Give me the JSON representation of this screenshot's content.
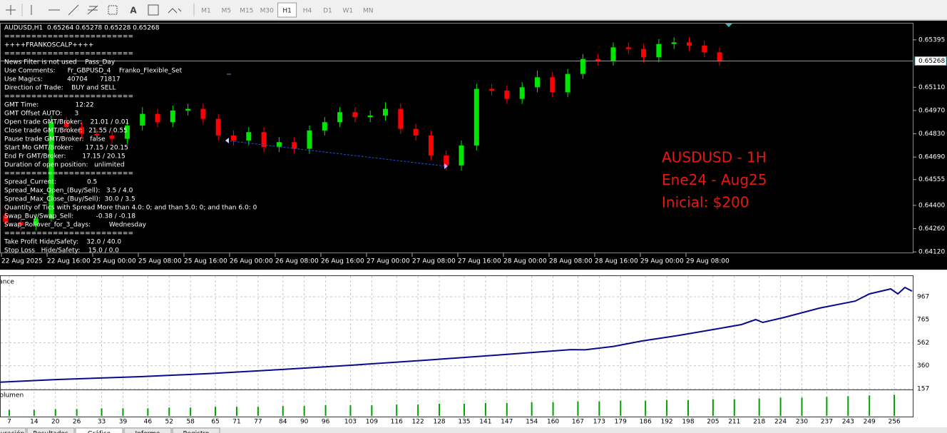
{
  "toolbar": {
    "timeframes": [
      "M1",
      "M5",
      "M15",
      "M30",
      "H1",
      "H4",
      "D1",
      "W1",
      "MN"
    ],
    "active_timeframe": "H1",
    "text_tool": "A"
  },
  "price_chart": {
    "header": "AUDUSD,H1  0.65264 0.65278 0.65228 0.65268",
    "info_lines": [
      "========================",
      "++++FRANKOSCALP++++",
      "========================",
      "News Filter is not used    Pass_Day",
      "Use Comments:      Fr_GBPUSD_4    Franko_Flexible_Set",
      "Use Magics:            40704      71817",
      "Direction of Trade:    BUY and SELL",
      "========================",
      "GMT Time:                  12:22",
      "GMT Offset AUTO:      3",
      "Open trade GMT/Broker:    21.01 / 0.01",
      "Close trade GMT/Broker:   21.55 / 0.55",
      "Pause trade GMT/Broker:   false",
      "Start Mo GMT/Broker:      17.15 / 20.15",
      "End Fr GMT/Broker:        17.15 / 20.15",
      "Duration of open position:   unlimited",
      "========================",
      "Spread_Current:               0.5",
      "Spread_Max_Open_(Buy/Sell):   3.5 / 4.0",
      "Spread_Max_Close_(Buy/Sell):  30.0 / 3.5",
      "Quantity of Tics with Spread More than 4.0: 0; and than 5.0: 0; and than 6.0: 0",
      "Swap_Buy/Swap_Sell:           -0.38 / -0.18",
      "Swap_Rollover_for_3_days:         Wednesday",
      "========================",
      "Take Profit Hide/Safety:    32.0 / 40.0",
      "Stop Loss   Hide/Safety:    15.0 / 0.0"
    ],
    "annotation": [
      "AUSDUSD - 1H",
      "Ene24 - Aug25",
      "Inicial: $200"
    ],
    "annotation_color": "#e8170f",
    "up_color": "#00e600",
    "down_color": "#ff0000",
    "ylim": [
      0.64112,
      0.65493
    ],
    "yticks": [
      0.65395,
      {
        "value": 0.6511,
        "label": "0.65110"
      },
      {
        "value": 0.6497,
        "label": "0.64970"
      },
      {
        "value": 0.6483,
        "label": "0.64830"
      },
      {
        "value": 0.6469,
        "label": "0.64690"
      },
      0.64555,
      {
        "value": 0.644,
        "label": "0.64400"
      },
      {
        "value": 0.6426,
        "label": "0.64260"
      },
      {
        "value": 0.6412,
        "label": "0.64120"
      }
    ],
    "current_price": 0.65268,
    "time_labels": [
      "22 Aug 2025",
      "22 Aug 16:00",
      "25 Aug 00:00",
      "25 Aug 08:00",
      "25 Aug 16:00",
      "26 Aug 00:00",
      "26 Aug 08:00",
      "26 Aug 16:00",
      "27 Aug 00:00",
      "27 Aug 08:00",
      "27 Aug 16:00",
      "28 Aug 00:00",
      "28 Aug 08:00",
      "28 Aug 16:00",
      "29 Aug 00:00",
      "29 Aug 08:00"
    ],
    "candles": [
      [
        0.6434,
        0.6437,
        0.6427,
        0.643
      ],
      [
        0.643,
        0.6433,
        0.6425,
        0.6428
      ],
      [
        0.6428,
        0.6435,
        0.6425,
        0.6432
      ],
      [
        0.6432,
        0.6494,
        0.643,
        0.649
      ],
      [
        0.649,
        0.6493,
        0.6484,
        0.6487
      ],
      [
        0.6487,
        0.649,
        0.648,
        0.6483
      ],
      [
        0.6483,
        0.6486,
        0.6479,
        0.6482
      ],
      [
        0.6482,
        0.6485,
        0.6477,
        0.648
      ],
      [
        0.648,
        0.6491,
        0.6477,
        0.6488
      ],
      [
        0.6488,
        0.6499,
        0.6485,
        0.6495
      ],
      [
        0.6495,
        0.6498,
        0.6487,
        0.649
      ],
      [
        0.649,
        0.65,
        0.6487,
        0.6497
      ],
      [
        0.6497,
        0.6501,
        0.6494,
        0.6498
      ],
      [
        0.6498,
        0.6501,
        0.6489,
        0.6492
      ],
      [
        0.6492,
        0.6495,
        0.6479,
        0.6482
      ],
      [
        0.6482,
        0.6485,
        0.6476,
        0.6479
      ],
      [
        0.6479,
        0.6487,
        0.6476,
        0.6484
      ],
      [
        0.6484,
        0.6487,
        0.6472,
        0.6475
      ],
      [
        0.6475,
        0.6481,
        0.6472,
        0.6478
      ],
      [
        0.6478,
        0.6481,
        0.6471,
        0.6474
      ],
      [
        0.6474,
        0.6488,
        0.6471,
        0.6485
      ],
      [
        0.6485,
        0.6493,
        0.6482,
        0.649
      ],
      [
        0.649,
        0.6499,
        0.6487,
        0.6496
      ],
      [
        0.6496,
        0.6499,
        0.649,
        0.6493
      ],
      [
        0.6493,
        0.6497,
        0.649,
        0.6494
      ],
      [
        0.6494,
        0.6502,
        0.6491,
        0.6498
      ],
      [
        0.6498,
        0.6501,
        0.6483,
        0.6486
      ],
      [
        0.6486,
        0.6489,
        0.6479,
        0.6482
      ],
      [
        0.6482,
        0.6485,
        0.6467,
        0.647
      ],
      [
        0.647,
        0.6473,
        0.6461,
        0.6464
      ],
      [
        0.6464,
        0.6479,
        0.6461,
        0.6476
      ],
      [
        0.6476,
        0.6513,
        0.6473,
        0.651
      ],
      [
        0.651,
        0.6513,
        0.6506,
        0.6509
      ],
      [
        0.6509,
        0.6512,
        0.6501,
        0.6504
      ],
      [
        0.6504,
        0.6514,
        0.6501,
        0.6511
      ],
      [
        0.6511,
        0.6521,
        0.6508,
        0.6517
      ],
      [
        0.6517,
        0.652,
        0.6505,
        0.6508
      ],
      [
        0.6508,
        0.6522,
        0.6505,
        0.6519
      ],
      [
        0.6519,
        0.6531,
        0.6516,
        0.6528
      ],
      [
        0.6528,
        0.6531,
        0.6524,
        0.6527
      ],
      [
        0.6527,
        0.6538,
        0.6524,
        0.6535
      ],
      [
        0.6535,
        0.6538,
        0.6531,
        0.6534
      ],
      [
        0.6534,
        0.6537,
        0.6526,
        0.6529
      ],
      [
        0.6529,
        0.654,
        0.6526,
        0.6537
      ],
      [
        0.6537,
        0.6541,
        0.6534,
        0.6538
      ],
      [
        0.6538,
        0.6541,
        0.6533,
        0.6536
      ],
      [
        0.6536,
        0.6539,
        0.6529,
        0.6532
      ],
      [
        0.6532,
        0.6535,
        0.6524,
        0.65268
      ]
    ]
  },
  "balance": {
    "label": "Balance",
    "color": "#0a0a8c",
    "ylim": [
      157,
      1143
    ],
    "yticks": [
      967,
      765,
      562,
      360,
      157
    ],
    "xlim": [
      4.4,
      261.2
    ],
    "trades": [
      4.4,
      20,
      44,
      64,
      84,
      104,
      124,
      145,
      165,
      169,
      177,
      185,
      195,
      205,
      213,
      217,
      219,
      225,
      235,
      245,
      249,
      255,
      257,
      259,
      261
    ],
    "values": [
      215,
      238,
      264,
      292,
      327,
      366,
      408,
      455,
      502,
      500,
      530,
      578,
      625,
      678,
      722,
      766,
      741,
      785,
      867,
      929,
      992,
      1036,
      992,
      1049,
      1017
    ]
  },
  "volume": {
    "label": "Volumen",
    "color": "#00a000",
    "ylim": [
      0,
      0.16
    ],
    "xticks": [
      7,
      14,
      20,
      26,
      33,
      39,
      46,
      52,
      58,
      65,
      71,
      77,
      84,
      90,
      96,
      103,
      109,
      116,
      122,
      128,
      135,
      141,
      147,
      154,
      160,
      167,
      173,
      179,
      186,
      192,
      198,
      205,
      211,
      218,
      224,
      230,
      237,
      243,
      249,
      256
    ],
    "values": [
      0.04,
      0.04,
      0.045,
      0.045,
      0.05,
      0.05,
      0.05,
      0.055,
      0.055,
      0.06,
      0.06,
      0.06,
      0.065,
      0.065,
      0.07,
      0.07,
      0.07,
      0.075,
      0.075,
      0.08,
      0.08,
      0.085,
      0.085,
      0.09,
      0.09,
      0.095,
      0.095,
      0.1,
      0.1,
      0.105,
      0.105,
      0.11,
      0.11,
      0.115,
      0.12,
      0.12,
      0.125,
      0.13,
      0.135,
      0.14
    ]
  },
  "tabs": [
    "Configuración",
    "Resultados",
    "Gráfico",
    "Informe",
    "Registro"
  ]
}
